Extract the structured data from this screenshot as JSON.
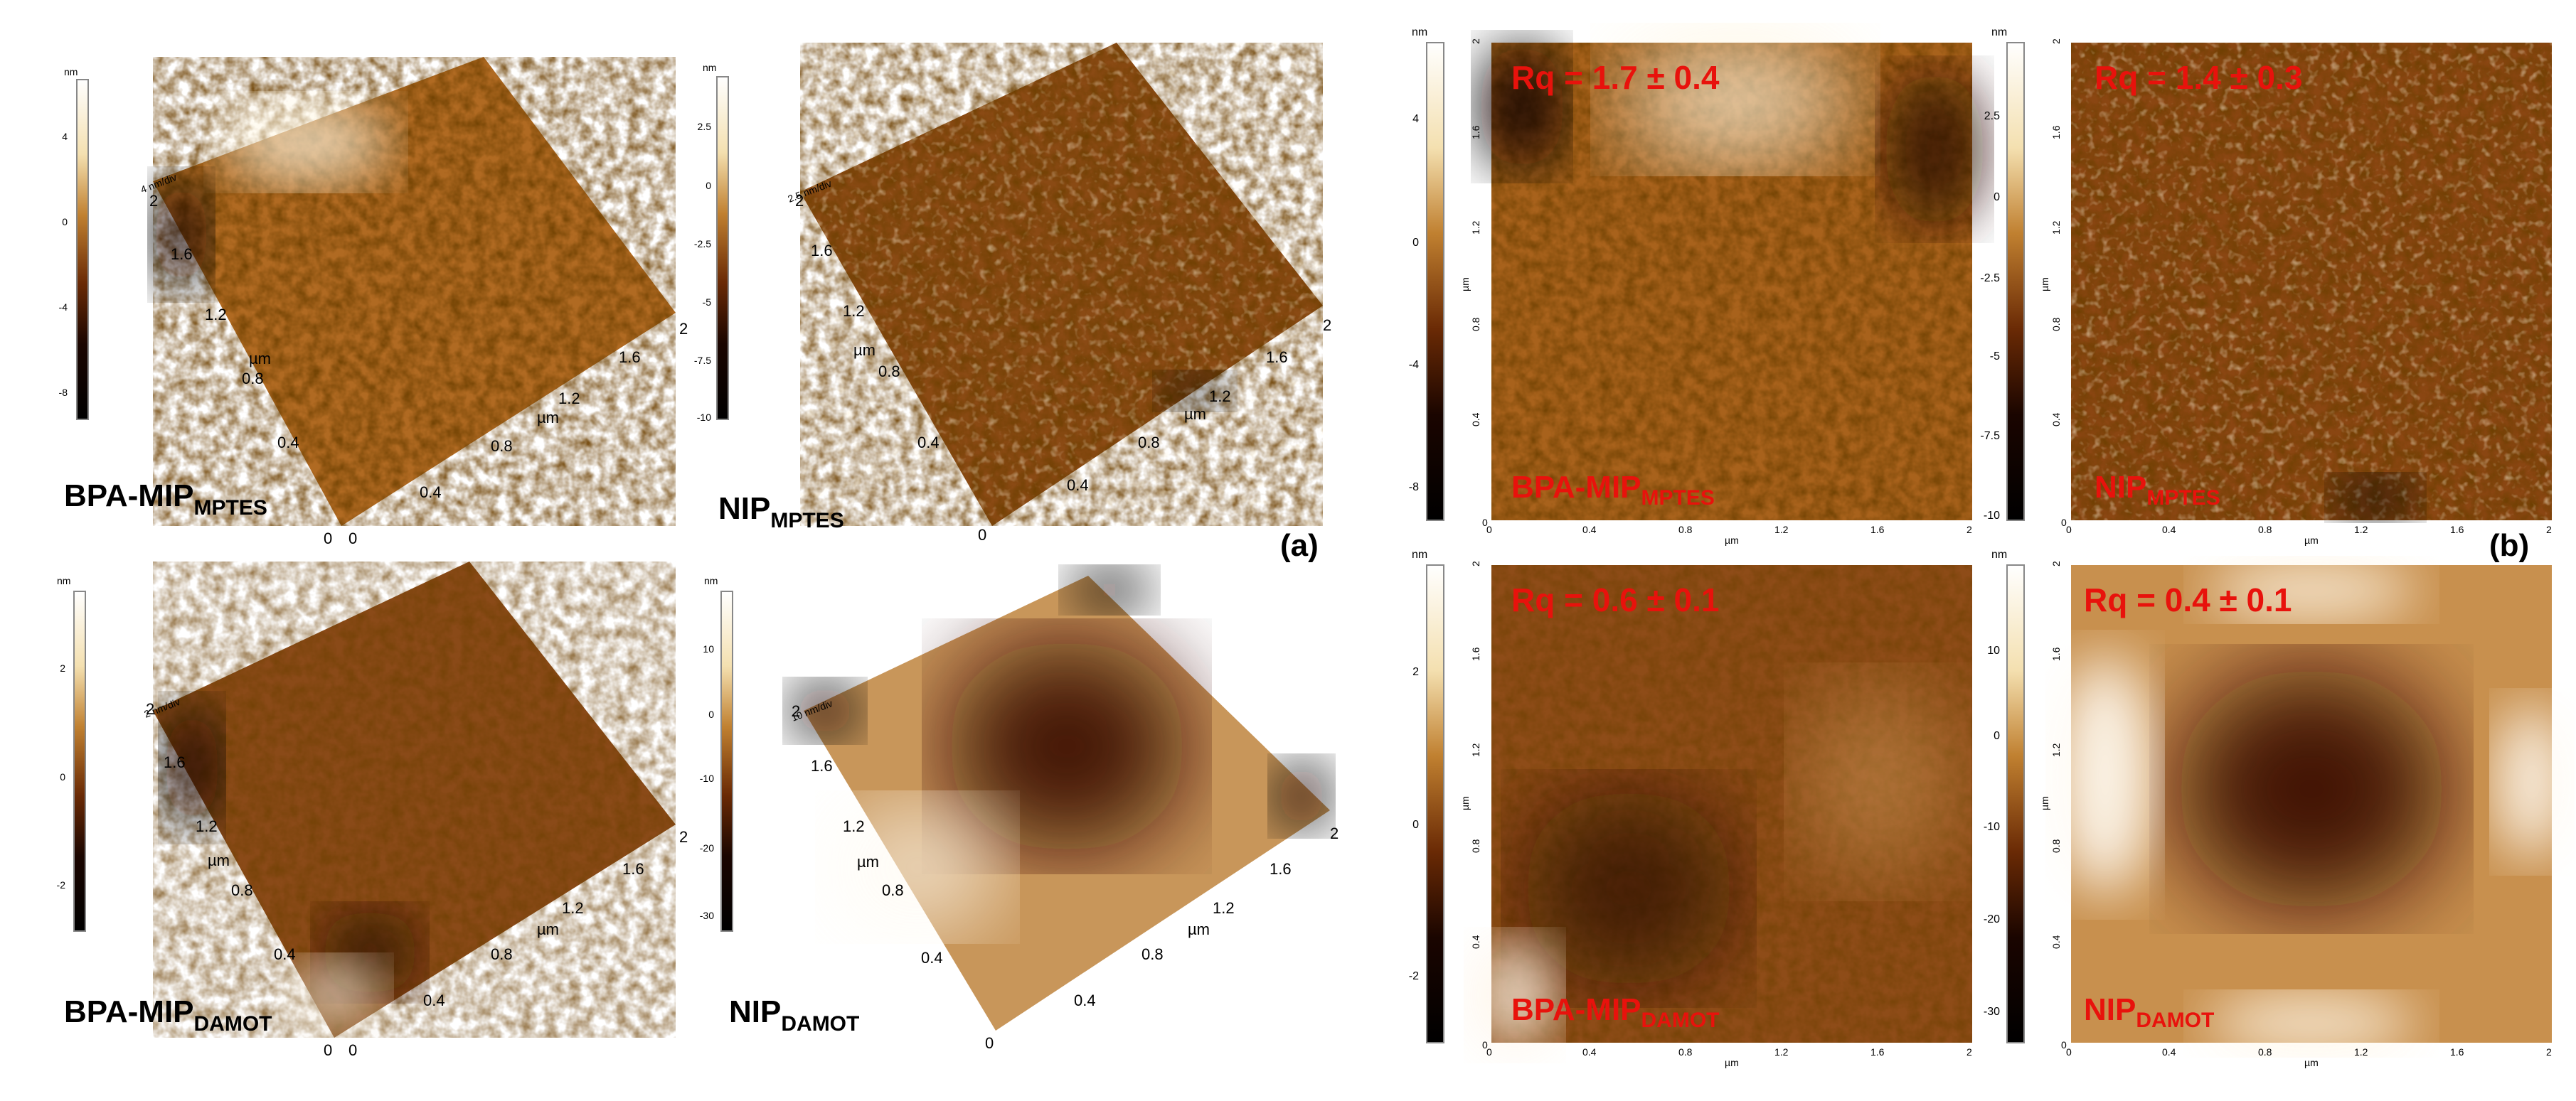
{
  "panel_a": {
    "label": "(a)",
    "unit": "nm",
    "axis_unit": "µm",
    "ticks": [
      "0",
      "0.4",
      "0.8",
      "1.2",
      "1.6",
      "2"
    ],
    "samples": [
      {
        "name": "BPA-MIP",
        "sub": "MPTES",
        "zscale": "4 nm/div",
        "cbar": [
          "4",
          "0",
          "-4",
          "-8"
        ]
      },
      {
        "name": "NIP",
        "sub": "MPTES",
        "zscale": "2.5 nm/div",
        "cbar": [
          "2.5",
          "0",
          "-2.5",
          "-5",
          "-7.5",
          "-10"
        ]
      },
      {
        "name": "BPA-MIP",
        "sub": "DAMOT",
        "zscale": "2 nm/div",
        "cbar": [
          "2",
          "0",
          "-2"
        ]
      },
      {
        "name": "NIP",
        "sub": "DAMOT",
        "zscale": "10 nm/div",
        "cbar": [
          "10",
          "0",
          "-10",
          "-20",
          "-30"
        ]
      }
    ]
  },
  "panel_b": {
    "label": "(b)",
    "unit": "nm",
    "axis_unit": "µm",
    "ticks": [
      "0",
      "0.4",
      "0.8",
      "1.2",
      "1.6",
      "2"
    ],
    "samples": [
      {
        "rq": "Rq = 1.7 ± 0.4",
        "name": "BPA-MIP",
        "sub": "MPTES",
        "cbar": [
          "4",
          "0",
          "-4",
          "-8"
        ]
      },
      {
        "rq": "Rq = 1.4 ± 0.3",
        "name": "NIP",
        "sub": "MPTES",
        "cbar": [
          "2.5",
          "0",
          "-2.5",
          "-5",
          "-7.5",
          "-10"
        ]
      },
      {
        "rq": "Rq = 0.6 ± 0.1",
        "name": "BPA-MIP",
        "sub": "DAMOT",
        "cbar": [
          "2",
          "0",
          "-2"
        ]
      },
      {
        "rq": "Rq = 0.4 ± 0.1",
        "name": "NIP",
        "sub": "DAMOT",
        "cbar": [
          "10",
          "0",
          "-10",
          "-20",
          "-30"
        ]
      }
    ]
  },
  "colors": {
    "afm_dark": "#1a0800",
    "afm_mid": "#a05a14",
    "afm_light": "#fff6e0",
    "annotation_red": "#e8120c"
  }
}
